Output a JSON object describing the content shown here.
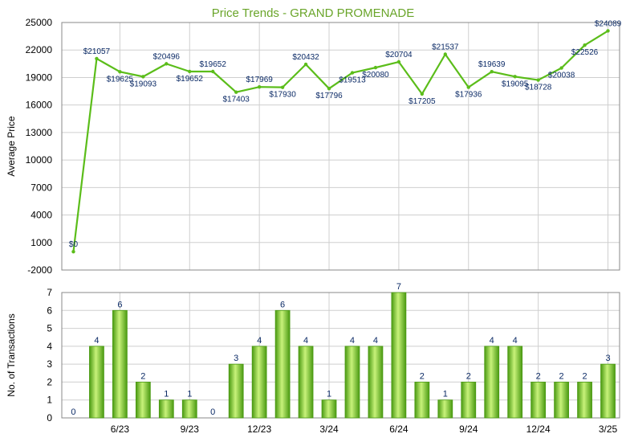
{
  "colors": {
    "line": "#5bbd1a",
    "bar_light": "#c8f27a",
    "bar_dark": "#4a9a12",
    "label": "#0b2a66",
    "title": "#6aa52a",
    "grid": "#cfcfcf"
  },
  "chart_data": [
    {
      "type": "line",
      "title": "Price Trends - GRAND PROMENADE",
      "xlabel": "",
      "ylabel": "Average Price",
      "ylim": [
        -2000,
        25000
      ],
      "yticks": [
        "25000",
        "22000",
        "19000",
        "16000",
        "13000",
        "10000",
        "7000",
        "4000",
        "1000",
        "-2000"
      ],
      "grid": true,
      "series": [
        {
          "values": [
            0,
            21057,
            19625,
            19093,
            20496,
            19652,
            19652,
            17403,
            17969,
            17930,
            20432,
            17796,
            19513,
            20080,
            20704,
            17205,
            21537,
            17936,
            19639,
            19095,
            18728,
            20038,
            22526,
            24089
          ],
          "labels": [
            "$0",
            "$21057",
            "$19625",
            "$19093",
            "$20496",
            "$19652",
            "$19652",
            "$17403",
            "$17969",
            "$17930",
            "$20432",
            "$17796",
            "$19513",
            "$20080",
            "$20704",
            "$17205",
            "$21537",
            "$17936",
            "$19639",
            "$19095",
            "$18728",
            "$20038",
            "$22526",
            "$24089"
          ]
        }
      ]
    },
    {
      "type": "bar",
      "title": "",
      "xlabel": "",
      "ylabel": "No. of Transactions",
      "ylim": [
        0,
        7
      ],
      "yticks": [
        "0",
        "1",
        "2",
        "3",
        "4",
        "5",
        "6",
        "7"
      ],
      "xticks": [
        {
          "index": 2,
          "label": "6/23"
        },
        {
          "index": 5,
          "label": "9/23"
        },
        {
          "index": 8,
          "label": "12/23"
        },
        {
          "index": 11,
          "label": "3/24"
        },
        {
          "index": 14,
          "label": "6/24"
        },
        {
          "index": 17,
          "label": "9/24"
        },
        {
          "index": 20,
          "label": "12/24"
        },
        {
          "index": 23,
          "label": "3/25"
        }
      ],
      "grid": true,
      "values": [
        0,
        4,
        6,
        2,
        1,
        1,
        0,
        3,
        4,
        6,
        4,
        1,
        4,
        4,
        7,
        2,
        1,
        2,
        4,
        4,
        2,
        2,
        2,
        3
      ]
    }
  ]
}
